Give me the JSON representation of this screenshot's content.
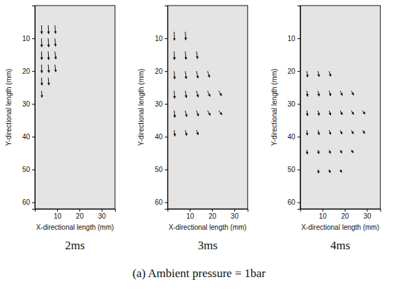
{
  "chart_data": [
    {
      "type": "quiver",
      "title": "2ms",
      "x_label": "X-directional length (mm)",
      "y_label": "Y-directional length (mm)",
      "xlim": [
        0,
        36
      ],
      "ylim": [
        0,
        62
      ],
      "xticks": [
        10,
        20,
        30
      ],
      "yticks": [
        10,
        20,
        30,
        40,
        50,
        60
      ],
      "color": "#111111",
      "x": [
        3,
        6,
        9,
        3,
        6,
        9,
        3,
        6,
        9,
        3,
        6,
        9,
        3,
        6,
        3
      ],
      "y": [
        6,
        6,
        6,
        10,
        10,
        10,
        14,
        14,
        14,
        18,
        18,
        18,
        22,
        22,
        26
      ],
      "u": [
        0.1,
        0.2,
        0.3,
        0.1,
        0.2,
        0.3,
        0.1,
        0.2,
        0.4,
        0.1,
        0.3,
        0.4,
        0.2,
        0.3,
        0.2
      ],
      "v": [
        2.6,
        2.6,
        2.5,
        2.6,
        2.6,
        2.4,
        2.5,
        2.5,
        2.3,
        2.5,
        2.4,
        2.2,
        2.3,
        2.2,
        2.0
      ]
    },
    {
      "type": "quiver",
      "title": "3ms",
      "x_label": "X-directional length (mm)",
      "y_label": "Y-directional length (mm)",
      "xlim": [
        0,
        36
      ],
      "ylim": [
        0,
        62
      ],
      "xticks": [
        10,
        20,
        30
      ],
      "yticks": [
        10,
        20,
        30,
        40,
        50,
        60
      ],
      "color": "#111111",
      "x": [
        3,
        8,
        3,
        8,
        13,
        3,
        8,
        13,
        18,
        3,
        8,
        13,
        18,
        23,
        3,
        8,
        13,
        18,
        23,
        3,
        8,
        13
      ],
      "y": [
        8,
        8,
        14,
        14,
        14,
        20,
        20,
        20,
        20,
        26,
        26,
        26,
        26,
        26,
        32,
        32,
        32,
        32,
        32,
        38,
        38,
        38
      ],
      "u": [
        0.1,
        0.2,
        0.1,
        0.3,
        0.5,
        0.2,
        0.4,
        0.7,
        0.9,
        0.2,
        0.5,
        0.8,
        1.1,
        1.3,
        0.3,
        0.6,
        0.9,
        1.2,
        1.4,
        0.3,
        0.6,
        0.8
      ],
      "v": [
        2.6,
        2.5,
        2.5,
        2.4,
        2.2,
        2.4,
        2.3,
        2.1,
        1.9,
        2.3,
        2.1,
        1.9,
        1.7,
        1.5,
        2.1,
        1.9,
        1.7,
        1.5,
        1.3,
        1.8,
        1.6,
        1.4
      ]
    },
    {
      "type": "quiver",
      "title": "4ms",
      "x_label": "X-directional length (mm)",
      "y_label": "Y-directional length (mm)",
      "xlim": [
        0,
        36
      ],
      "ylim": [
        0,
        62
      ],
      "xticks": [
        10,
        20,
        30
      ],
      "yticks": [
        10,
        20,
        30,
        40,
        50,
        60
      ],
      "color": "#111111",
      "x": [
        3,
        8,
        13,
        3,
        8,
        13,
        18,
        23,
        3,
        8,
        13,
        18,
        23,
        28,
        3,
        8,
        13,
        18,
        23,
        28,
        3,
        8,
        13,
        18,
        23,
        8,
        13,
        18
      ],
      "y": [
        20,
        20,
        20,
        26,
        26,
        26,
        26,
        26,
        32,
        32,
        32,
        32,
        32,
        32,
        38,
        38,
        38,
        38,
        38,
        38,
        44,
        44,
        44,
        44,
        44,
        50,
        50,
        50
      ],
      "u": [
        0.3,
        0.5,
        0.7,
        0.3,
        0.5,
        0.7,
        0.9,
        1.0,
        0.3,
        0.5,
        0.7,
        0.9,
        1.0,
        1.1,
        0.2,
        0.5,
        0.7,
        0.8,
        0.9,
        1.0,
        0.2,
        0.4,
        0.6,
        0.7,
        0.8,
        0.3,
        0.5,
        0.6
      ],
      "v": [
        1.8,
        1.7,
        1.6,
        1.7,
        1.6,
        1.5,
        1.4,
        1.3,
        1.6,
        1.5,
        1.4,
        1.3,
        1.2,
        1.1,
        1.5,
        1.4,
        1.3,
        1.2,
        1.1,
        1.0,
        1.3,
        1.2,
        1.1,
        1.0,
        0.9,
        1.1,
        1.0,
        0.9
      ]
    }
  ],
  "caption": "(a) Ambient pressure = 1bar"
}
